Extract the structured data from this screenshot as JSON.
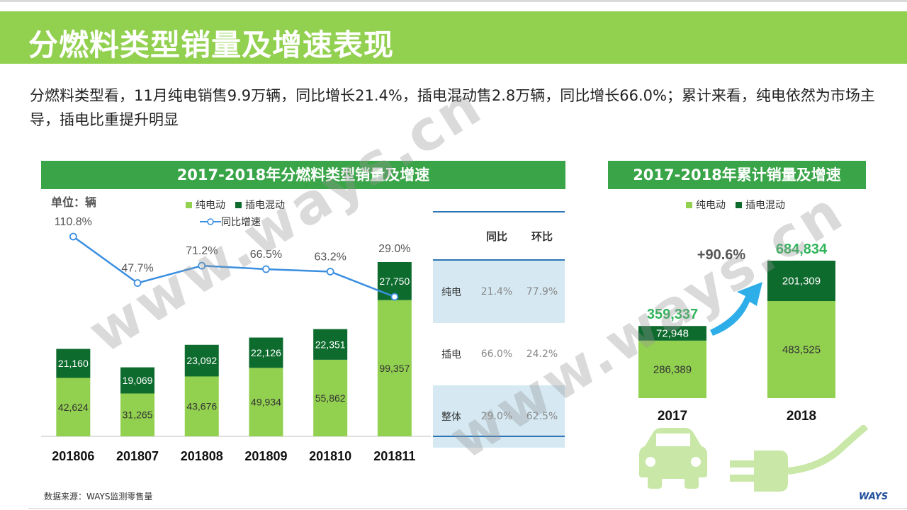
{
  "title": "分燃料类型销量及增速表现",
  "summary": "分燃料类型看，11月纯电销售9.9万辆，同比增长21.4%，插电混动售2.8万辆，同比增长66.0%；累计来看，纯电依然为市场主导，插电比重提升明显",
  "left_panel": {
    "header": "2017-2018年分燃料类型销量及增速",
    "unit": "单位：辆"
  },
  "right_panel": {
    "header": "2017-2018年累计销量及增速"
  },
  "legend": {
    "bev": "纯电动",
    "phev": "插电混动",
    "yoy": "同比增速"
  },
  "colors": {
    "bev": "#92d050",
    "phev": "#0e6b2e",
    "line": "#3b8fe0",
    "header": "#3aa548",
    "title_bar": "#92d050",
    "growth": "#2fb45a"
  },
  "ratio_table": {
    "headers": [
      "",
      "同比",
      "环比"
    ],
    "rows": [
      [
        "纯电",
        "21.4%",
        "77.9%"
      ],
      [
        "插电",
        "66.0%",
        "24.2%"
      ],
      [
        "整体",
        "29.0%",
        "62.5%"
      ]
    ]
  },
  "chart_data": [
    {
      "type": "bar",
      "stacked": true,
      "title": "2017-2018年分燃料类型销量及增速",
      "unit": "单位：辆",
      "categories": [
        "201806",
        "201807",
        "201808",
        "201809",
        "201810",
        "201811"
      ],
      "series": [
        {
          "name": "纯电动",
          "values": [
            42624,
            31265,
            43676,
            49934,
            55862,
            99357
          ]
        },
        {
          "name": "插电混动",
          "values": [
            21160,
            19069,
            23092,
            22126,
            22351,
            27750
          ]
        }
      ],
      "line_series": {
        "name": "同比增速",
        "values": [
          110.8,
          47.7,
          71.2,
          66.5,
          63.2,
          29.0
        ],
        "labels": [
          "110.8%",
          "47.7%",
          "71.2%",
          "66.5%",
          "63.2%",
          "29.0%"
        ]
      },
      "legend_position": "top"
    },
    {
      "type": "bar",
      "stacked": true,
      "title": "2017-2018年累计销量及增速",
      "categories": [
        "2017",
        "2018"
      ],
      "series": [
        {
          "name": "纯电动",
          "values": [
            286389,
            483525
          ]
        },
        {
          "name": "插电混动",
          "values": [
            72948,
            201309
          ]
        }
      ],
      "totals": [
        "359,337",
        "684,834"
      ],
      "growth_label": "+90.6%",
      "legend_position": "top"
    }
  ],
  "source": "数据来源：WAYS监测零售量",
  "logo": "WAYS",
  "watermark": "www.ways.cn"
}
